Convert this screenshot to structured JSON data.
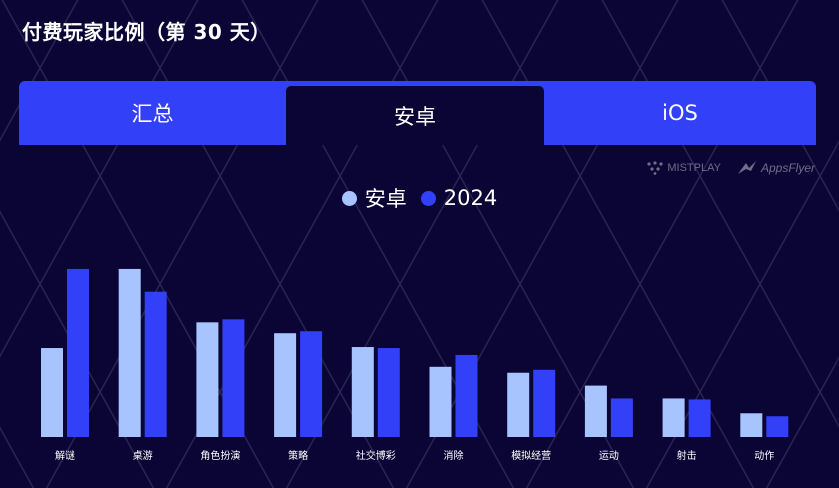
{
  "title": "付费玩家比例（第 30 天）",
  "tabs": [
    "汇总",
    "安卓",
    "iOS"
  ],
  "active_tab": 1,
  "logos": {
    "mistplay": "MISTPLAY",
    "appsflyer": "AppsFlyer"
  },
  "colors": {
    "background": "#0b0535",
    "tab_bar": "#3240f8",
    "series_android": "#a8c4ff",
    "series_2024": "#3240f8"
  },
  "chart_data": {
    "type": "bar",
    "categories": [
      "解谜",
      "桌游",
      "角色扮演",
      "策略",
      "社交博彩",
      "消除",
      "模拟经营",
      "运动",
      "射击",
      "动作"
    ],
    "series": [
      {
        "name": "安卓",
        "color": "#a8c4ff",
        "values": [
          9.0,
          17.0,
          11.6,
          10.5,
          9.1,
          7.1,
          6.5,
          5.2,
          3.9,
          2.4
        ]
      },
      {
        "name": "2024",
        "color": "#3240f8",
        "values": [
          17.0,
          14.7,
          11.9,
          10.7,
          9.0,
          8.3,
          6.8,
          3.9,
          3.8,
          2.1
        ]
      }
    ],
    "xlabel": "",
    "ylabel": "",
    "ylim": [
      0,
      17.5
    ],
    "grid": false,
    "legend": "top-center"
  }
}
